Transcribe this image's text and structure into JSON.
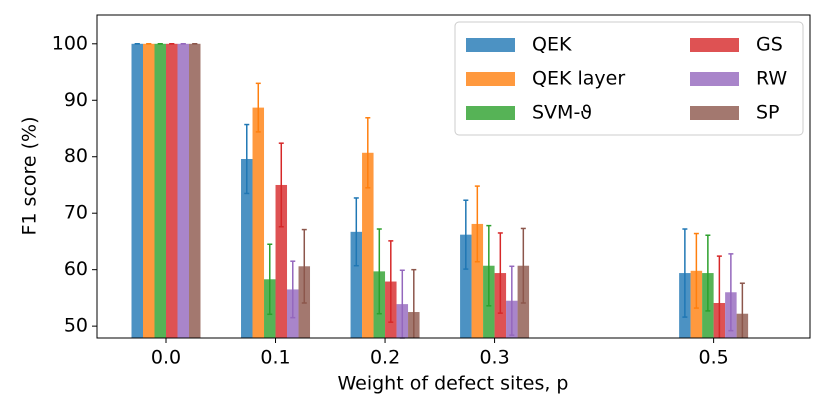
{
  "chart_data": {
    "type": "bar",
    "xlabel": "Weight of defect sites, p",
    "ylabel": "F1 score (%)",
    "x": [
      0,
      0.1,
      0.2,
      0.3,
      0.5
    ],
    "xlim": [
      -0.063,
      0.588
    ],
    "xticks": [
      {
        "value": 0,
        "label": "0.0"
      },
      0.1,
      0.2,
      0.3,
      0.5
    ],
    "ylim": [
      47.9,
      105.1
    ],
    "yticks": [
      50,
      60,
      70,
      80,
      90,
      100
    ],
    "legend": "upper right",
    "series": [
      {
        "name": "QEK",
        "color": "#1f77b4",
        "values": [
          100,
          79.6,
          66.7,
          66.2,
          59.4
        ],
        "errors": [
          0,
          6.1,
          6.0,
          6.1,
          7.8
        ]
      },
      {
        "name": "QEK layer",
        "color": "#ff7f0e",
        "values": [
          100,
          88.7,
          80.7,
          68.1,
          59.8
        ],
        "errors": [
          0,
          4.3,
          6.2,
          6.7,
          6.6
        ]
      },
      {
        "name": "SVM-ϑ",
        "color": "#2ca02c",
        "values": [
          100,
          58.3,
          59.7,
          60.7,
          59.4
        ],
        "errors": [
          0,
          6.2,
          7.5,
          7.1,
          6.7
        ]
      },
      {
        "name": "GS",
        "color": "#d62728",
        "values": [
          100,
          75.0,
          57.9,
          59.4,
          54.1
        ],
        "errors": [
          0,
          7.4,
          7.2,
          7.1,
          8.3
        ]
      },
      {
        "name": "RW",
        "color": "#9467bd",
        "values": [
          100,
          56.5,
          53.9,
          54.5,
          56.0
        ],
        "errors": [
          0,
          5.0,
          6.0,
          6.1,
          6.8
        ]
      },
      {
        "name": "SP",
        "color": "#8c564b",
        "values": [
          100,
          60.6,
          52.5,
          60.7,
          52.2
        ],
        "errors": [
          0,
          6.5,
          7.5,
          6.6,
          5.4
        ]
      }
    ]
  }
}
